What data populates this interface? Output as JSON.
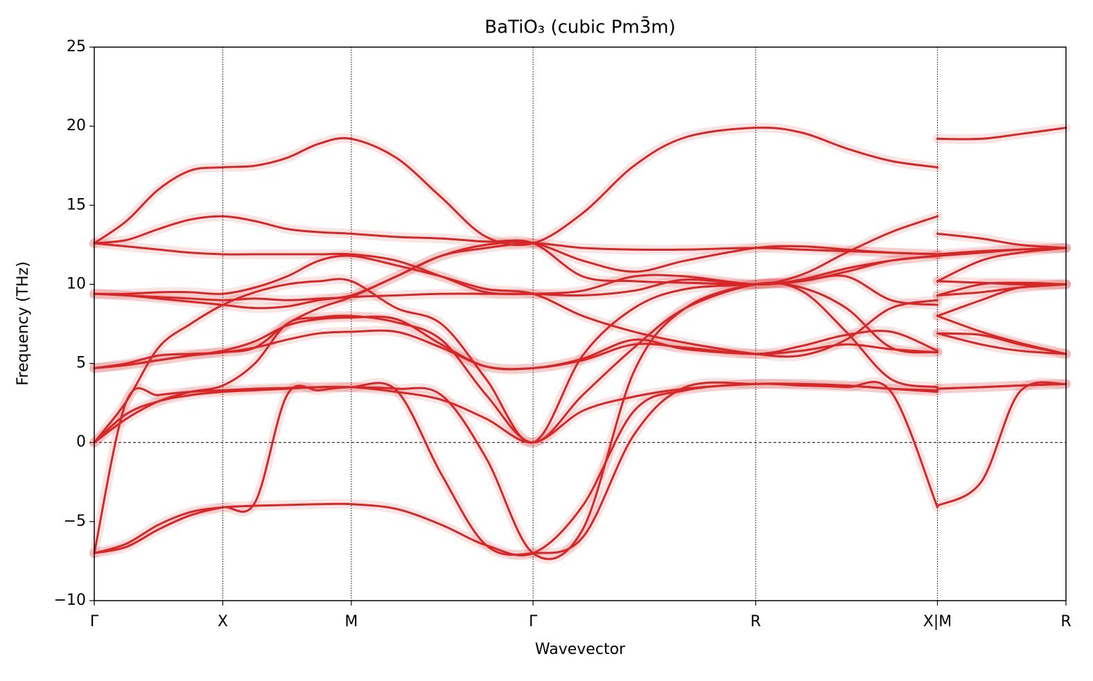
{
  "chart_data": {
    "type": "line",
    "title": "BaTiO₃ (cubic Pm3̄m)",
    "x_label": "Wavevector",
    "y_label": "Frequency (THz)",
    "xlim": [
      0,
      7.56
    ],
    "ylim": [
      -10,
      25
    ],
    "xticks": [
      {
        "value": 0,
        "label": "Γ"
      },
      {
        "value": 1,
        "label": "X"
      },
      {
        "value": 2,
        "label": "M"
      },
      {
        "value": 3.414,
        "label": "Γ"
      },
      {
        "value": 5.146,
        "label": "R"
      },
      {
        "value": 6.56,
        "label": "X|M"
      },
      {
        "value": 7.56,
        "label": "R"
      }
    ],
    "yticks": [
      {
        "value": -10,
        "label": "−10"
      },
      {
        "value": -5,
        "label": "−5"
      },
      0,
      5,
      10,
      15,
      20,
      25
    ],
    "grid": "x",
    "zero_line": true,
    "x": [
      0,
      0.25,
      0.5,
      0.75,
      1,
      1.25,
      1.5,
      1.75,
      2,
      2.35,
      2.7,
      3.05,
      3.414,
      3.8,
      4.2,
      4.6,
      5.146,
      5.5,
      5.85,
      6.2,
      6.56,
      6.56,
      6.56,
      6.9,
      7.2,
      7.56
    ],
    "series": [
      {
        "color": "#d62728",
        "values": [
          -7,
          -6.4,
          -5.2,
          -4.4,
          -4.1,
          -4.0,
          -3.95,
          -3.9,
          -3.9,
          -4.2,
          -5.2,
          -6.5,
          -7,
          -4,
          2,
          3.3,
          3.7,
          3.6,
          3.5,
          3.2,
          -4.1,
          null,
          -4.0,
          -2.5,
          3.2,
          3.7
        ]
      },
      {
        "color": "#d62728",
        "values": [
          -7,
          2.6,
          3.0,
          3.2,
          3.3,
          3.4,
          3.45,
          3.5,
          3.5,
          3.2,
          2.7,
          1.5,
          0,
          2.0,
          2.9,
          3.4,
          3.7,
          3.7,
          3.6,
          3.4,
          3.2,
          null,
          3.4,
          3.5,
          3.6,
          3.7
        ]
      },
      {
        "color": "#d62728",
        "values": [
          -7,
          -6.6,
          -5.5,
          -4.6,
          -4.1,
          -3.8,
          3.0,
          3.3,
          3.5,
          3.3,
          -2,
          -6.5,
          -7,
          -6,
          0.5,
          3.5,
          3.7,
          3.7,
          3.6,
          3.4,
          3.3,
          null,
          3.4,
          3.5,
          3.6,
          3.7
        ]
      },
      {
        "color": "#d62728",
        "values": [
          0,
          1.8,
          2.6,
          3.0,
          3.2,
          3.3,
          3.4,
          3.5,
          3.5,
          3.4,
          3.0,
          -1,
          -7,
          -5.5,
          4.5,
          8.5,
          10.0,
          9.6,
          7,
          4,
          3.5,
          null,
          6.9,
          6.8,
          6.2,
          5.6
        ]
      },
      {
        "color": "#d62728",
        "values": [
          0,
          1.5,
          2.6,
          3.2,
          3.6,
          5,
          7.5,
          7.9,
          8.0,
          7.6,
          6.5,
          3,
          0,
          3,
          6,
          8.5,
          10.0,
          9.8,
          8.5,
          6,
          5.7,
          null,
          8.0,
          9,
          9.8,
          10.0
        ]
      },
      {
        "color": "#d62728",
        "values": [
          0,
          2.6,
          6,
          7.5,
          8.7,
          9.5,
          10,
          10.2,
          10.2,
          8.5,
          7.5,
          4,
          0,
          5.5,
          8.5,
          9.7,
          10.0,
          10.2,
          10.5,
          9,
          8.7,
          null,
          9.3,
          10,
          10.1,
          10.0
        ]
      },
      {
        "color": "#d62728",
        "values": [
          4.7,
          4.9,
          5.2,
          5.5,
          5.7,
          6,
          7.5,
          8.5,
          9.2,
          10.5,
          11.8,
          12.3,
          12.6,
          12.3,
          12.2,
          12.2,
          12.3,
          12.2,
          12.1,
          12.0,
          11.9,
          null,
          10.2,
          10.1,
          10,
          10.0
        ]
      },
      {
        "color": "#d62728",
        "values": [
          4.7,
          4.9,
          5.2,
          5.5,
          5.8,
          6.4,
          7.4,
          7.8,
          7.9,
          7.8,
          6.2,
          4.8,
          4.7,
          5.3,
          6.5,
          5.9,
          5.6,
          5.8,
          6.2,
          5.9,
          5.7,
          null,
          6.9,
          6.2,
          5.8,
          5.6
        ]
      },
      {
        "color": "#d62728",
        "values": [
          4.7,
          5.0,
          5.5,
          5.6,
          5.7,
          6.0,
          6.5,
          6.9,
          7.0,
          7.0,
          6.0,
          4.8,
          4.7,
          5.2,
          6.2,
          6.0,
          5.6,
          6.1,
          6.8,
          7.0,
          5.8,
          null,
          8.0,
          7.0,
          6.3,
          5.6
        ]
      },
      {
        "color": "#d62728",
        "values": [
          9.4,
          9.3,
          9.1,
          8.9,
          8.7,
          8.5,
          8.6,
          9.0,
          9.2,
          9.3,
          9.4,
          9.4,
          9.4,
          9.6,
          10.5,
          10.5,
          10.0,
          10.3,
          11.0,
          11.5,
          11.8,
          null,
          9.3,
          9.5,
          9.8,
          10.0
        ]
      },
      {
        "color": "#d62728",
        "values": [
          9.4,
          9.3,
          9.2,
          9.1,
          9.0,
          9.1,
          9.0,
          9.1,
          9.3,
          10.5,
          11.8,
          12.5,
          12.6,
          11.5,
          10.8,
          11.5,
          12.3,
          12.4,
          12.2,
          12.0,
          11.9,
          null,
          10.2,
          11.5,
          12,
          12.3
        ]
      },
      {
        "color": "#d62728",
        "values": [
          9.4,
          9.4,
          9.5,
          9.5,
          9.4,
          9.8,
          10.5,
          11.5,
          11.8,
          11.2,
          10.5,
          9.7,
          9.4,
          8.0,
          7.0,
          6.3,
          5.6,
          5.5,
          6.5,
          8.5,
          9.0,
          null,
          11.9,
          12.1,
          12.2,
          12.3
        ]
      },
      {
        "color": "#d62728",
        "values": [
          12.6,
          12.4,
          12.2,
          12.0,
          11.9,
          11.9,
          11.9,
          11.9,
          11.9,
          11.5,
          10.5,
          9.5,
          9.4,
          9.3,
          9.6,
          10.3,
          10.0,
          10.6,
          12.0,
          13.3,
          14.3,
          null,
          13.2,
          12.9,
          12.5,
          12.3
        ]
      },
      {
        "color": "#d62728",
        "values": [
          12.6,
          12.8,
          13.5,
          14.1,
          14.3,
          14.0,
          13.5,
          13.3,
          13.2,
          13.0,
          12.9,
          12.7,
          12.6,
          10.5,
          10.2,
          10.1,
          10.0,
          10.2,
          10.8,
          11.5,
          11.8,
          null,
          11.8,
          12.0,
          12.2,
          12.3
        ]
      },
      {
        "color": "#d62728",
        "values": [
          12.6,
          14,
          16,
          17.2,
          17.4,
          17.5,
          18,
          18.9,
          19.2,
          18,
          15.5,
          13,
          12.6,
          14.5,
          17.5,
          19.3,
          19.9,
          19.6,
          18.6,
          17.8,
          17.4,
          null,
          19.2,
          19.2,
          19.5,
          19.9
        ]
      }
    ]
  }
}
